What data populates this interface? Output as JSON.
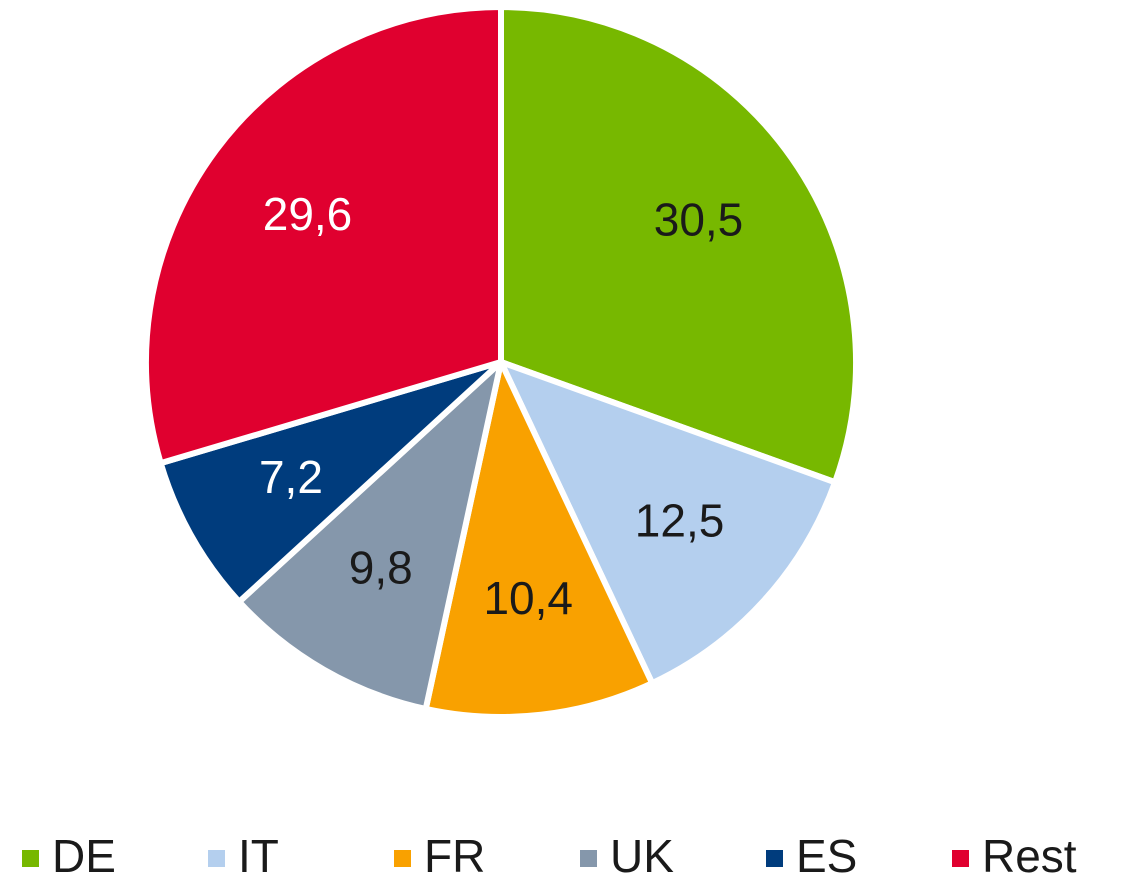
{
  "chart_data": {
    "type": "pie",
    "categories": [
      "DE",
      "IT",
      "FR",
      "UK",
      "ES",
      "Rest"
    ],
    "values": [
      30.5,
      12.5,
      10.4,
      9.8,
      7.2,
      29.6
    ],
    "value_labels": [
      "30,5",
      "12,5",
      "10,4",
      "9,8",
      "7,2",
      "29,6"
    ],
    "colors": [
      "#77b800",
      "#b4cfee",
      "#f9a100",
      "#8597ab",
      "#003c7d",
      "#e0002f"
    ],
    "legend": "bottom"
  }
}
